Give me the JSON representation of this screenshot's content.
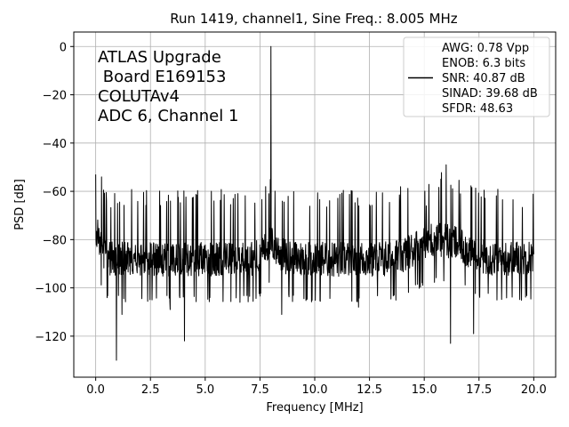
{
  "chart_data": {
    "type": "line",
    "title": "Run 1419, channel1, Sine Freq.: 8.005 MHz",
    "xlabel": "Frequency [MHz]",
    "ylabel": "PSD [dB]",
    "xlim": [
      -1.0,
      21.0
    ],
    "ylim": [
      -137,
      6
    ],
    "xticks": [
      0.0,
      2.5,
      5.0,
      7.5,
      10.0,
      12.5,
      15.0,
      17.5,
      20.0
    ],
    "xtick_labels": [
      "0.0",
      "2.5",
      "5.0",
      "7.5",
      "10.0",
      "12.5",
      "15.0",
      "17.5",
      "20.0"
    ],
    "yticks": [
      0,
      -20,
      -40,
      -60,
      -80,
      -100,
      -120
    ],
    "ytick_labels": [
      "0",
      "−20",
      "−40",
      "−60",
      "−80",
      "−100",
      "−120"
    ],
    "grid": true,
    "legend_position": "top-right",
    "line_color": "#000000",
    "annotation_lines": [
      "ATLAS Upgrade",
      " Board E169153",
      "COLUTAv4",
      "ADC 6, Channel 1"
    ],
    "legend_lines": [
      "AWG: 0.78 Vpp",
      "ENOB: 6.3 bits",
      "SNR: 40.87 dB",
      "SINAD: 39.68 dB",
      "SFDR: 48.63"
    ],
    "series": [
      {
        "x_start": 0.0,
        "x_end": 20.0,
        "noise_floor": -88,
        "noise_spread": [
          -103,
          -63
        ],
        "peaks": [
          {
            "x": 0.0,
            "y": -53
          },
          {
            "x": 8.005,
            "y": 0
          },
          {
            "x": 16.0,
            "y": -49
          },
          {
            "x": 7.9,
            "y": -61
          },
          {
            "x": 0.5,
            "y": -64
          },
          {
            "x": 15.1,
            "y": -66
          },
          {
            "x": 1.0,
            "y": -65
          },
          {
            "x": 5.4,
            "y": -64
          }
        ],
        "dips": [
          {
            "x": 0.95,
            "y": -130
          },
          {
            "x": 4.05,
            "y": -122
          },
          {
            "x": 16.2,
            "y": -123
          },
          {
            "x": 17.25,
            "y": -119
          },
          {
            "x": 1.2,
            "y": -111
          },
          {
            "x": 3.4,
            "y": -109
          },
          {
            "x": 12.0,
            "y": -108
          },
          {
            "x": 8.5,
            "y": -111
          }
        ]
      }
    ]
  }
}
